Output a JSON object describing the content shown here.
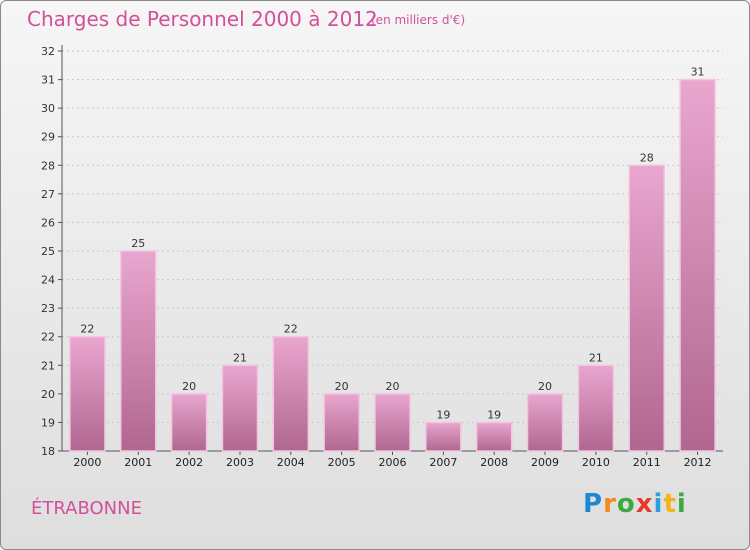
{
  "header": {
    "title": "Charges de Personnel 2000 à 2012",
    "subtitle": "(en milliers d'€)"
  },
  "footer": {
    "commune": "ÉTRABONNE",
    "logo": "Proxiti"
  },
  "colors": {
    "title": "#d2509a",
    "bar_top": "#e9a6cf",
    "bar_bottom": "#b0678f",
    "bar_edge": "#f3c5e0"
  },
  "chart_data": {
    "type": "bar",
    "categories": [
      "2000",
      "2001",
      "2002",
      "2003",
      "2004",
      "2005",
      "2006",
      "2007",
      "2008",
      "2009",
      "2010",
      "2011",
      "2012"
    ],
    "values": [
      22,
      25,
      20,
      21,
      22,
      20,
      20,
      19,
      19,
      20,
      21,
      28,
      31
    ],
    "title": "Charges de Personnel 2000 à 2012",
    "subtitle": "(en milliers d'€)",
    "ylim": [
      18,
      32
    ],
    "yticks": [
      18,
      19,
      20,
      21,
      22,
      23,
      24,
      25,
      26,
      27,
      28,
      29,
      30,
      31,
      32
    ],
    "grid": true,
    "legend": "none"
  }
}
